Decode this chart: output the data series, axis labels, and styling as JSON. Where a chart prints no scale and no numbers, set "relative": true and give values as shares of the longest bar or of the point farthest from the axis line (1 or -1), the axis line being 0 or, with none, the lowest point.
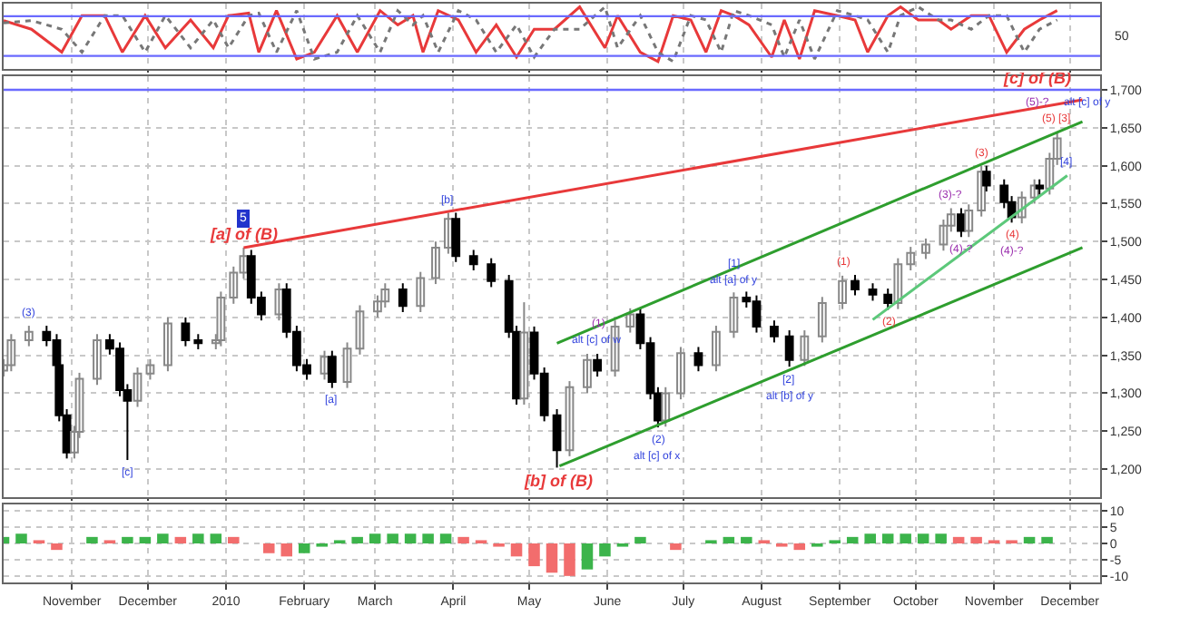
{
  "chart_data": [
    {
      "type": "line",
      "x": [
        "2009-10-05",
        "2009-10-16",
        "2009-10-28",
        "2009-11-05",
        "2009-11-14",
        "2009-11-21",
        "2009-11-30",
        "2009-12-08",
        "2009-12-18",
        "2009-12-27",
        "2010-01-02",
        "2010-01-10",
        "2010-01-14",
        "2010-01-21",
        "2010-01-29",
        "2010-02-05",
        "2010-02-14",
        "2010-02-22",
        "2010-03-03",
        "2010-03-10",
        "2010-03-16",
        "2010-03-20",
        "2010-03-26",
        "2010-04-03",
        "2010-04-10",
        "2010-04-18",
        "2010-04-26",
        "2010-05-03",
        "2010-05-11",
        "2010-05-21",
        "2010-05-31",
        "2010-06-05",
        "2010-06-14",
        "2010-06-21",
        "2010-06-27",
        "2010-07-04",
        "2010-07-10",
        "2010-07-16",
        "2010-07-21",
        "2010-07-27",
        "2010-08-05",
        "2010-08-10",
        "2010-08-16",
        "2010-08-22",
        "2010-08-31",
        "2010-09-07",
        "2010-09-12",
        "2010-09-20",
        "2010-09-25",
        "2010-10-02",
        "2010-10-10",
        "2010-10-15",
        "2010-10-23",
        "2010-10-30",
        "2010-11-06",
        "2010-11-13",
        "2010-11-19",
        "2010-11-26"
      ],
      "series": [
        {
          "color": "#e8393a",
          "values": [
            0.78,
            0.64,
            0.27,
            0.86,
            0.86,
            0.27,
            0.86,
            0.34,
            0.79,
            0.34,
            0.86,
            0.9,
            0.27,
            0.94,
            0.16,
            0.27,
            0.86,
            0.27,
            0.94,
            0.71,
            0.86,
            0.27,
            0.94,
            0.79,
            0.27,
            0.71,
            0.19,
            0.64,
            0.64,
            1,
            0.34,
            0.86,
            0.27,
            0.12,
            0.86,
            0.79,
            0.27,
            0.94,
            0.86,
            0.71,
            0.19,
            0.79,
            0.16,
            0.94,
            0.86,
            0.79,
            0.27,
            0.86,
            1,
            0.79,
            0.79,
            0.64,
            0.86,
            0.86,
            0.27,
            0.64,
            0.79,
            0.94
          ]
        },
        {
          "color": "#777777",
          "line_style": "dotted",
          "values": [
            0.74,
            0.78,
            0.64,
            0.27,
            0.86,
            0.86,
            0.27,
            0.86,
            0.34,
            0.79,
            0.34,
            0.86,
            0.9,
            0.27,
            0.94,
            0.16,
            0.27,
            0.86,
            0.27,
            0.94,
            0.71,
            0.86,
            0.27,
            0.94,
            0.79,
            0.27,
            0.71,
            0.19,
            0.64,
            0.64,
            1,
            0.34,
            0.86,
            0.27,
            0.12,
            0.86,
            0.79,
            0.27,
            0.94,
            0.86,
            0.71,
            0.19,
            0.79,
            0.16,
            0.94,
            0.86,
            0.79,
            0.27,
            0.86,
            1,
            0.79,
            0.79,
            0.64,
            0.86,
            0.86,
            0.27,
            0.64,
            0.79
          ]
        }
      ],
      "xlim": [
        "2009-10-05",
        "2010-12-13"
      ],
      "relative": true,
      "ref_lines": [
        {
          "axis": "y",
          "value": 0.85,
          "color": "#6a6aff"
        },
        {
          "axis": "y",
          "value": 0.21,
          "color": "#6a6aff"
        }
      ],
      "annotations": [
        "50"
      ],
      "grid": true,
      "tick_labels": false
    },
    {
      "type": "candlestick",
      "x": [
        "2009-10-05",
        "2009-10-08",
        "2009-10-15",
        "2009-10-22",
        "2009-10-26",
        "2009-10-27",
        "2009-10-30",
        "2009-11-02",
        "2009-11-04",
        "2009-11-11",
        "2009-11-16",
        "2009-11-20",
        "2009-11-23",
        "2009-11-27",
        "2009-12-02",
        "2009-12-09",
        "2009-12-16",
        "2009-12-21",
        "2009-12-28",
        "2009-12-30",
        "2010-01-04",
        "2010-01-08",
        "2010-01-11",
        "2010-01-15",
        "2010-01-22",
        "2010-01-25",
        "2010-01-29",
        "2010-02-02",
        "2010-02-09",
        "2010-02-12",
        "2010-02-18",
        "2010-02-23",
        "2010-03-02",
        "2010-03-05",
        "2010-03-12",
        "2010-03-19",
        "2010-03-25",
        "2010-03-30",
        "2010-04-02",
        "2010-04-09",
        "2010-04-16",
        "2010-04-23",
        "2010-04-26",
        "2010-04-29",
        "2010-05-03",
        "2010-05-07",
        "2010-05-12",
        "2010-05-17",
        "2010-05-24",
        "2010-05-28",
        "2010-06-04",
        "2010-06-10",
        "2010-06-14",
        "2010-06-18",
        "2010-06-21",
        "2010-06-24",
        "2010-06-30",
        "2010-07-07",
        "2010-07-14",
        "2010-07-21",
        "2010-07-26",
        "2010-07-30",
        "2010-08-06",
        "2010-08-12",
        "2010-08-18",
        "2010-08-25",
        "2010-09-02",
        "2010-09-07",
        "2010-09-14",
        "2010-09-20",
        "2010-09-24",
        "2010-09-29",
        "2010-10-05",
        "2010-10-12",
        "2010-10-15",
        "2010-10-19",
        "2010-10-22",
        "2010-10-27",
        "2010-10-29",
        "2010-11-05",
        "2010-11-08",
        "2010-11-12",
        "2010-11-17",
        "2010-11-19",
        "2010-11-23",
        "2010-11-26"
      ],
      "ohlc": [
        [
          1330,
          1345,
          1322,
          1337
        ],
        [
          1337,
          1378,
          1329,
          1370
        ],
        [
          1370,
          1389,
          1362,
          1381
        ],
        [
          1381,
          1389,
          1362,
          1370
        ],
        [
          1370,
          1378,
          1329,
          1337
        ],
        [
          1337,
          1345,
          1263,
          1271
        ],
        [
          1271,
          1279,
          1214,
          1222
        ],
        [
          1222,
          1257,
          1214,
          1249
        ],
        [
          1249,
          1327,
          1241,
          1319
        ],
        [
          1319,
          1378,
          1311,
          1370
        ],
        [
          1370,
          1378,
          1351,
          1359
        ],
        [
          1359,
          1367,
          1296,
          1304
        ],
        [
          1304,
          1312,
          1212,
          1290
        ],
        [
          1290,
          1334,
          1282,
          1326
        ],
        [
          1326,
          1345,
          1318,
          1337
        ],
        [
          1337,
          1400,
          1329,
          1392
        ],
        [
          1392,
          1400,
          1362,
          1370
        ],
        [
          1370,
          1378,
          1358,
          1366
        ],
        [
          1366,
          1378,
          1358,
          1370
        ],
        [
          1370,
          1434,
          1362,
          1426
        ],
        [
          1426,
          1467,
          1418,
          1459
        ],
        [
          1459,
          1492,
          1451,
          1481
        ],
        [
          1481,
          1489,
          1418,
          1426
        ],
        [
          1426,
          1434,
          1396,
          1404
        ],
        [
          1404,
          1445,
          1396,
          1437
        ],
        [
          1437,
          1445,
          1373,
          1381
        ],
        [
          1381,
          1389,
          1329,
          1337
        ],
        [
          1337,
          1345,
          1318,
          1326
        ],
        [
          1326,
          1356,
          1318,
          1348
        ],
        [
          1348,
          1356,
          1307,
          1315
        ],
        [
          1315,
          1367,
          1307,
          1359
        ],
        [
          1359,
          1416,
          1351,
          1408
        ],
        [
          1408,
          1429,
          1400,
          1421
        ],
        [
          1421,
          1445,
          1413,
          1437
        ],
        [
          1437,
          1445,
          1407,
          1415
        ],
        [
          1415,
          1460,
          1407,
          1452
        ],
        [
          1452,
          1500,
          1444,
          1492
        ],
        [
          1492,
          1538,
          1484,
          1530
        ],
        [
          1530,
          1538,
          1473,
          1481
        ],
        [
          1481,
          1489,
          1462,
          1470
        ],
        [
          1470,
          1478,
          1440,
          1448
        ],
        [
          1448,
          1456,
          1373,
          1381
        ],
        [
          1381,
          1389,
          1285,
          1293
        ],
        [
          1293,
          1420,
          1285,
          1380
        ],
        [
          1380,
          1388,
          1318,
          1326
        ],
        [
          1326,
          1334,
          1263,
          1271
        ],
        [
          1271,
          1279,
          1202,
          1225
        ],
        [
          1225,
          1316,
          1217,
          1308
        ],
        [
          1308,
          1352,
          1300,
          1344
        ],
        [
          1344,
          1352,
          1322,
          1330
        ],
        [
          1330,
          1396,
          1322,
          1388
        ],
        [
          1388,
          1412,
          1380,
          1404
        ],
        [
          1404,
          1412,
          1358,
          1366
        ],
        [
          1366,
          1374,
          1292,
          1300
        ],
        [
          1300,
          1308,
          1255,
          1264
        ],
        [
          1264,
          1308,
          1256,
          1300
        ],
        [
          1300,
          1361,
          1292,
          1353
        ],
        [
          1353,
          1361,
          1329,
          1337
        ],
        [
          1337,
          1389,
          1329,
          1381
        ],
        [
          1381,
          1433,
          1373,
          1426
        ],
        [
          1426,
          1434,
          1413,
          1421
        ],
        [
          1421,
          1429,
          1380,
          1388
        ],
        [
          1388,
          1396,
          1367,
          1375
        ],
        [
          1375,
          1383,
          1335,
          1344
        ],
        [
          1344,
          1383,
          1336,
          1375
        ],
        [
          1375,
          1427,
          1367,
          1419
        ],
        [
          1419,
          1455,
          1411,
          1448
        ],
        [
          1448,
          1456,
          1429,
          1437
        ],
        [
          1437,
          1445,
          1422,
          1430
        ],
        [
          1430,
          1438,
          1410,
          1419
        ],
        [
          1419,
          1478,
          1411,
          1470
        ],
        [
          1470,
          1493,
          1462,
          1485
        ],
        [
          1485,
          1504,
          1477,
          1496
        ],
        [
          1496,
          1529,
          1488,
          1521
        ],
        [
          1521,
          1544,
          1513,
          1536
        ],
        [
          1536,
          1544,
          1506,
          1514
        ],
        [
          1514,
          1549,
          1506,
          1541
        ],
        [
          1541,
          1600,
          1533,
          1592
        ],
        [
          1592,
          1600,
          1566,
          1574
        ],
        [
          1574,
          1582,
          1544,
          1552
        ],
        [
          1552,
          1560,
          1525,
          1532
        ],
        [
          1532,
          1566,
          1524,
          1558
        ],
        [
          1558,
          1582,
          1550,
          1574
        ],
        [
          1574,
          1582,
          1562,
          1570
        ],
        [
          1570,
          1617,
          1562,
          1609
        ],
        [
          1609,
          1645,
          1601,
          1636
        ]
      ],
      "series": [
        {
          "type": "line",
          "color": "#e8393a",
          "x": [
            "2010-01-08",
            "2010-12-06"
          ],
          "values": [
            1492,
            1687
          ]
        },
        {
          "type": "line",
          "color": "#2e9e2e",
          "x": [
            "2010-05-12",
            "2010-12-06"
          ],
          "values": [
            1366,
            1658
          ]
        },
        {
          "type": "line",
          "color": "#2e9e2e",
          "x": [
            "2010-05-13",
            "2010-12-06"
          ],
          "values": [
            1204,
            1492
          ]
        },
        {
          "type": "line",
          "color": "#5cc87a",
          "x": [
            "2010-09-14",
            "2010-11-30"
          ],
          "values": [
            1397,
            1587
          ]
        }
      ],
      "ref_lines": [
        {
          "axis": "y",
          "value": 1700,
          "color": "#6a6aff"
        }
      ],
      "xlim": [
        "2009-10-05",
        "2010-12-13"
      ],
      "ylim": [
        1163,
        1718
      ],
      "yticks": [
        {
          "value": 1200,
          "label": "1,200"
        },
        {
          "value": 1250,
          "label": "1,250"
        },
        {
          "value": 1300,
          "label": "1,300"
        },
        {
          "value": 1350,
          "label": "1,350"
        },
        {
          "value": 1400,
          "label": "1,400"
        },
        {
          "value": 1450,
          "label": "1,450"
        },
        {
          "value": 1500,
          "label": "1,500"
        },
        {
          "value": 1550,
          "label": "1,550"
        },
        {
          "value": 1600,
          "label": "1,600"
        },
        {
          "value": 1650,
          "label": "1,650"
        },
        {
          "value": 1700,
          "label": "1,700"
        }
      ],
      "grid": true,
      "tick_labels": "y",
      "annotations": [
        {
          "text": "[a] of (B)",
          "x": "2010-01-08",
          "y": 1492
        },
        {
          "text": "5",
          "x": "2010-01-08",
          "y": 1492
        },
        {
          "text": "[b] of (B)",
          "x": "2010-05-12",
          "y": 1202
        },
        {
          "text": "[c] of (B)",
          "x": "2010-11-18",
          "y": 1700
        },
        {
          "text": "(3)",
          "x": "2009-10-15",
          "y": 1389
        },
        {
          "text": "[c]",
          "x": "2009-11-23",
          "y": 1212
        },
        {
          "text": "[a]",
          "x": "2010-02-12",
          "y": 1307
        },
        {
          "text": "[b]",
          "x": "2010-03-30",
          "y": 1538
        },
        {
          "text": "alt [c] of w",
          "x": "2010-05-28",
          "y": 1352
        },
        {
          "text": "(1)",
          "x": "2010-05-28",
          "y": 1352
        },
        {
          "text": "alt [a] of y",
          "x": "2010-07-21",
          "y": 1433
        },
        {
          "text": "[1]",
          "x": "2010-07-21",
          "y": 1433
        },
        {
          "text": "(2)",
          "x": "2010-06-21",
          "y": 1255
        },
        {
          "text": "alt [c] of x",
          "x": "2010-06-21",
          "y": 1255
        },
        {
          "text": "[2]",
          "x": "2010-08-12",
          "y": 1335
        },
        {
          "text": "alt [b] of y",
          "x": "2010-08-12",
          "y": 1335
        },
        {
          "text": "(1)",
          "x": "2010-09-02",
          "y": 1455
        },
        {
          "text": "(2)",
          "x": "2010-09-20",
          "y": 1410
        },
        {
          "text": "(3)-?",
          "x": "2010-10-15",
          "y": 1544
        },
        {
          "text": "(4)-?",
          "x": "2010-10-19",
          "y": 1506
        },
        {
          "text": "(3)",
          "x": "2010-10-27",
          "y": 1600
        },
        {
          "text": "(4)",
          "x": "2010-11-08",
          "y": 1525
        },
        {
          "text": "(4)-?",
          "x": "2010-11-08",
          "y": 1525
        },
        {
          "text": "(5) [3]",
          "x": "2010-11-26",
          "y": 1645
        },
        {
          "text": "(5)-?",
          "x": "2010-11-26",
          "y": 1645
        },
        {
          "text": "alt [c] of y",
          "x": "2010-11-26",
          "y": 1645
        },
        {
          "text": "[4]",
          "x": "2010-11-30",
          "y": 1587
        }
      ]
    },
    {
      "type": "bar",
      "x": [
        "2009-10-05",
        "2009-10-12",
        "2009-10-19",
        "2009-10-26",
        "2009-11-02",
        "2009-11-09",
        "2009-11-16",
        "2009-11-23",
        "2009-11-30",
        "2009-12-07",
        "2009-12-14",
        "2009-12-21",
        "2009-12-28",
        "2010-01-04",
        "2010-01-11",
        "2010-01-18",
        "2010-01-25",
        "2010-02-01",
        "2010-02-08",
        "2010-02-15",
        "2010-02-22",
        "2010-03-01",
        "2010-03-08",
        "2010-03-15",
        "2010-03-22",
        "2010-03-29",
        "2010-04-05",
        "2010-04-12",
        "2010-04-19",
        "2010-04-26",
        "2010-05-03",
        "2010-05-10",
        "2010-05-17",
        "2010-05-24",
        "2010-05-31",
        "2010-06-07",
        "2010-06-14",
        "2010-06-21",
        "2010-06-28",
        "2010-07-05",
        "2010-07-12",
        "2010-07-19",
        "2010-07-26",
        "2010-08-02",
        "2010-08-09",
        "2010-08-16",
        "2010-08-23",
        "2010-08-30",
        "2010-09-06",
        "2010-09-13",
        "2010-09-20",
        "2010-09-27",
        "2010-10-04",
        "2010-10-11",
        "2010-10-18",
        "2010-10-25",
        "2010-11-01",
        "2010-11-08",
        "2010-11-15",
        "2010-11-22"
      ],
      "values": [
        2,
        3,
        1,
        -2,
        0,
        2,
        1,
        2,
        2,
        3,
        2,
        3,
        3,
        2,
        0,
        -3,
        -4,
        -3,
        -1,
        1,
        2,
        3,
        3,
        3,
        3,
        3,
        2,
        1,
        -1,
        -4,
        -7,
        -9,
        -10,
        -8,
        -4,
        -1,
        2,
        0,
        -2,
        0,
        1,
        2,
        2,
        1,
        -1,
        -2,
        -1,
        1,
        2,
        3,
        3,
        3,
        3,
        3,
        2,
        2,
        1,
        1,
        2,
        2
      ],
      "colors": [
        "#3cb44b",
        "#3cb44b",
        "#f26d6d",
        "#f26d6d",
        "#3cb44b",
        "#3cb44b",
        "#f26d6d",
        "#3cb44b",
        "#3cb44b",
        "#3cb44b",
        "#f26d6d",
        "#3cb44b",
        "#3cb44b",
        "#f26d6d",
        "#f26d6d",
        "#f26d6d",
        "#f26d6d",
        "#3cb44b",
        "#3cb44b",
        "#3cb44b",
        "#3cb44b",
        "#3cb44b",
        "#3cb44b",
        "#3cb44b",
        "#3cb44b",
        "#3cb44b",
        "#f26d6d",
        "#f26d6d",
        "#f26d6d",
        "#f26d6d",
        "#f26d6d",
        "#f26d6d",
        "#f26d6d",
        "#3cb44b",
        "#3cb44b",
        "#3cb44b",
        "#3cb44b",
        "#f26d6d",
        "#f26d6d",
        "#3cb44b",
        "#3cb44b",
        "#3cb44b",
        "#3cb44b",
        "#f26d6d",
        "#f26d6d",
        "#f26d6d",
        "#3cb44b",
        "#3cb44b",
        "#3cb44b",
        "#3cb44b",
        "#3cb44b",
        "#3cb44b",
        "#3cb44b",
        "#3cb44b",
        "#f26d6d",
        "#f26d6d",
        "#f26d6d",
        "#f26d6d",
        "#3cb44b",
        "#3cb44b"
      ],
      "xlim": [
        "2009-10-05",
        "2010-12-13"
      ],
      "ylim": [
        -12,
        12
      ],
      "yticks": [
        10,
        5,
        0,
        -5,
        -10
      ],
      "xticks": [
        {
          "value": "2009-11-01",
          "label": "November"
        },
        {
          "value": "2009-12-01",
          "label": "December"
        },
        {
          "value": "2010-01-01",
          "label": "2010"
        },
        {
          "value": "2010-02-01",
          "label": "February"
        },
        {
          "value": "2010-03-01",
          "label": "March"
        },
        {
          "value": "2010-04-01",
          "label": "April"
        },
        {
          "value": "2010-05-01",
          "label": "May"
        },
        {
          "value": "2010-06-01",
          "label": "June"
        },
        {
          "value": "2010-07-01",
          "label": "July"
        },
        {
          "value": "2010-08-01",
          "label": "August"
        },
        {
          "value": "2010-09-01",
          "label": "September"
        },
        {
          "value": "2010-10-01",
          "label": "October"
        },
        {
          "value": "2010-11-01",
          "label": "November"
        },
        {
          "value": "2010-12-01",
          "label": "December"
        }
      ],
      "grid": true
    }
  ]
}
